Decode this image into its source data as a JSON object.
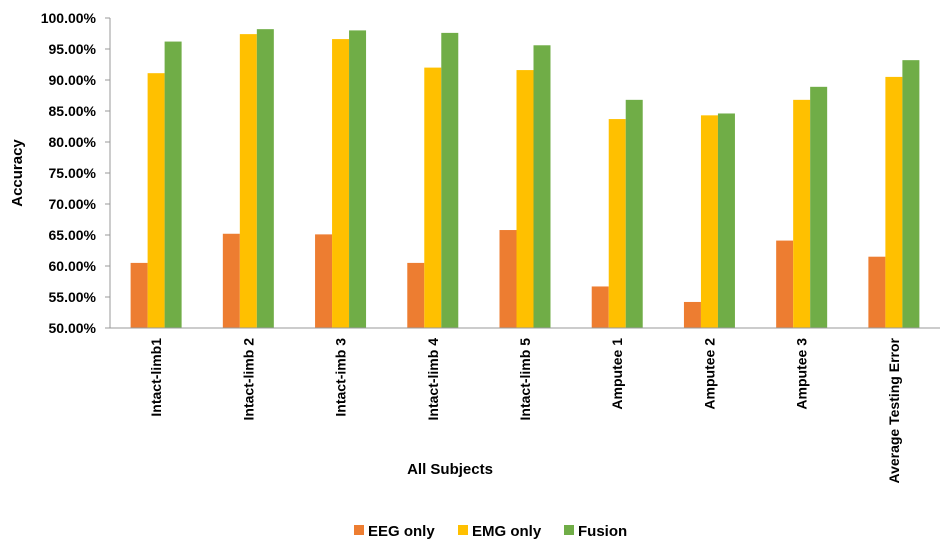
{
  "chart_data": {
    "type": "bar",
    "title": "",
    "xlabel": "All Subjects",
    "ylabel": "Accuracy",
    "ylim": [
      0.5,
      1.0
    ],
    "ytick_step": 0.05,
    "ytick_format": "percent-2",
    "grid": false,
    "legend_position": "bottom",
    "categories": [
      "Intact-limb1",
      "Intact-limb 2",
      "Intact-imb 3",
      "Intact-limb 4",
      "Intact-limb 5",
      "Amputee 1",
      "Amputee 2",
      "Amputee 3",
      "Average Testing Error"
    ],
    "series": [
      {
        "name": "EEG only",
        "color": "#ED7D31",
        "values": [
          0.605,
          0.652,
          0.651,
          0.605,
          0.658,
          0.567,
          0.542,
          0.641,
          0.615
        ]
      },
      {
        "name": "EMG only",
        "color": "#FFC000",
        "values": [
          0.911,
          0.974,
          0.966,
          0.92,
          0.916,
          0.837,
          0.843,
          0.868,
          0.905
        ]
      },
      {
        "name": "Fusion",
        "color": "#70AD47",
        "values": [
          0.962,
          0.982,
          0.98,
          0.976,
          0.956,
          0.868,
          0.846,
          0.889,
          0.932
        ]
      }
    ]
  }
}
